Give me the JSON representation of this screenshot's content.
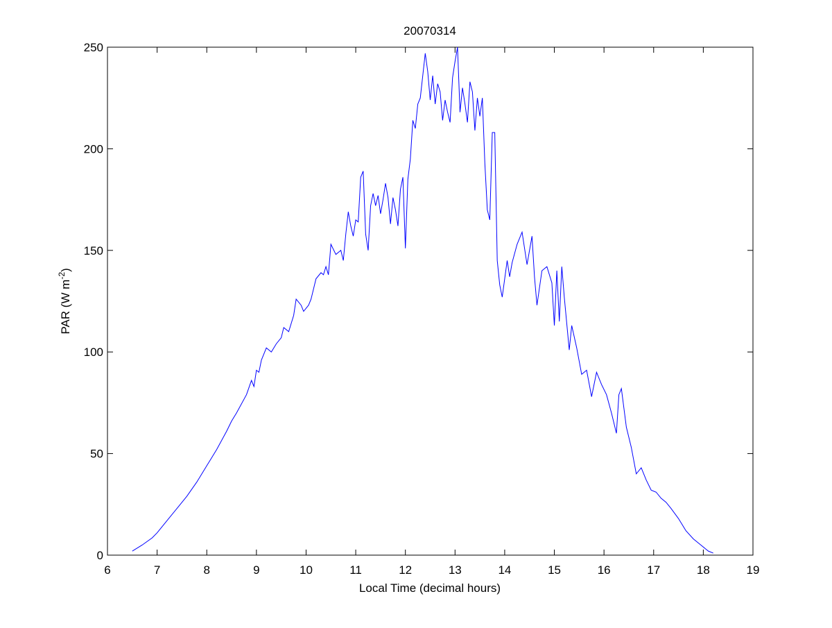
{
  "chart_data": {
    "type": "line",
    "title": "20070314",
    "xlabel": "Local Time (decimal hours)",
    "ylabel": "PAR (W m",
    "ylabel_sup": "-2",
    "ylabel_end": ")",
    "xlim": [
      6,
      19
    ],
    "xticks": [
      6,
      7,
      8,
      9,
      10,
      11,
      12,
      13,
      14,
      15,
      16,
      17,
      18,
      19
    ],
    "ylim": [
      0,
      250
    ],
    "yticks": [
      0,
      50,
      100,
      150,
      200,
      250
    ],
    "grid": false,
    "box": true,
    "series": [
      {
        "color": "#0000ff",
        "x": [
          6.5,
          6.7,
          6.9,
          7.0,
          7.2,
          7.4,
          7.6,
          7.8,
          8.0,
          8.1,
          8.2,
          8.4,
          8.5,
          8.6,
          8.8,
          8.9,
          8.95,
          9.0,
          9.05,
          9.1,
          9.2,
          9.3,
          9.4,
          9.5,
          9.55,
          9.65,
          9.75,
          9.8,
          9.9,
          9.95,
          10.05,
          10.1,
          10.2,
          10.3,
          10.35,
          10.4,
          10.45,
          10.5,
          10.6,
          10.7,
          10.75,
          10.8,
          10.85,
          10.9,
          10.95,
          11.0,
          11.05,
          11.1,
          11.15,
          11.2,
          11.25,
          11.3,
          11.35,
          11.4,
          11.45,
          11.5,
          11.55,
          11.6,
          11.65,
          11.7,
          11.75,
          11.8,
          11.85,
          11.9,
          11.95,
          12.0,
          12.05,
          12.1,
          12.15,
          12.2,
          12.25,
          12.3,
          12.4,
          12.45,
          12.5,
          12.55,
          12.6,
          12.65,
          12.7,
          12.75,
          12.8,
          12.85,
          12.9,
          12.95,
          13.0,
          13.05,
          13.1,
          13.15,
          13.2,
          13.25,
          13.3,
          13.35,
          13.4,
          13.45,
          13.5,
          13.55,
          13.6,
          13.65,
          13.7,
          13.75,
          13.8,
          13.85,
          13.9,
          13.95,
          14.0,
          14.05,
          14.1,
          14.15,
          14.25,
          14.35,
          14.45,
          14.55,
          14.6,
          14.65,
          14.75,
          14.85,
          14.95,
          15.0,
          15.05,
          15.1,
          15.15,
          15.2,
          15.3,
          15.35,
          15.45,
          15.55,
          15.65,
          15.75,
          15.85,
          15.95,
          16.05,
          16.15,
          16.25,
          16.3,
          16.35,
          16.45,
          16.55,
          16.65,
          16.75,
          16.85,
          16.95,
          17.05,
          17.15,
          17.25,
          17.35,
          17.5,
          17.65,
          17.8,
          17.95,
          18.1,
          18.2
        ],
        "values": [
          2,
          5,
          8.5,
          11,
          17,
          23,
          29,
          36,
          44,
          48,
          52,
          61,
          66,
          70,
          79,
          86,
          83,
          91,
          90,
          96,
          102,
          100,
          104,
          107,
          112,
          110,
          118,
          126,
          123,
          120,
          123,
          126,
          136,
          139,
          138,
          142,
          138,
          153,
          148,
          150,
          145,
          158,
          169,
          162,
          157,
          165,
          164,
          186,
          189,
          158,
          150,
          172,
          178,
          172,
          177,
          168,
          175,
          183,
          176,
          163,
          176,
          170,
          162,
          180,
          186,
          151,
          185,
          195,
          214,
          210,
          222,
          225,
          247,
          238,
          224,
          236,
          222,
          232,
          228,
          214,
          224,
          218,
          213,
          235,
          243,
          250,
          218,
          230,
          222,
          213,
          233,
          228,
          209,
          225,
          216,
          225,
          193,
          170,
          165,
          208,
          208,
          145,
          133,
          127,
          136,
          145,
          137,
          144,
          153,
          159,
          143,
          157,
          137,
          123,
          140,
          142,
          134,
          113,
          140,
          115,
          142,
          127,
          101,
          113,
          102,
          89,
          91,
          78,
          90,
          84,
          79,
          70,
          60,
          79,
          82,
          63,
          53,
          40,
          43,
          37,
          32,
          31,
          28,
          26,
          23,
          18,
          12,
          8,
          5,
          2,
          1
        ]
      }
    ]
  }
}
